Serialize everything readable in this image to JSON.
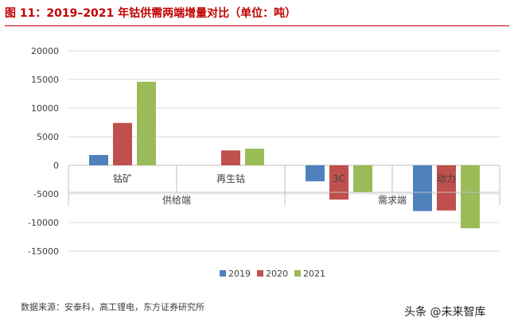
{
  "title": "图 11：2019–2021 年钴供需两端增量对比（单位：吨）",
  "source": "数据来源：安泰科，高工锂电，东方证券研究所",
  "watermark": "头条 @未来智库",
  "chart_data": {
    "type": "bar",
    "ylim": [
      -15000,
      20000
    ],
    "y_ticks": [
      "20000",
      "15000",
      "10000",
      "5000",
      "0",
      "-5000",
      "-10000",
      "-15000"
    ],
    "y_tick_values": [
      20000,
      15000,
      10000,
      5000,
      0,
      -5000,
      -10000,
      -15000
    ],
    "grid": true,
    "legend_position": "bottom",
    "categories": [
      "钴矿",
      "再生钴",
      "3C",
      "动力"
    ],
    "groups": [
      "供给端",
      "需求端"
    ],
    "series": [
      {
        "name": "2019",
        "color": "#4f81bd",
        "values": [
          1800,
          0,
          -2800,
          -8000
        ]
      },
      {
        "name": "2020",
        "color": "#c0504d",
        "values": [
          7400,
          2600,
          -6000,
          -7900
        ]
      },
      {
        "name": "2021",
        "color": "#9bbb59",
        "values": [
          14600,
          2900,
          -4700,
          -11000
        ]
      }
    ]
  }
}
